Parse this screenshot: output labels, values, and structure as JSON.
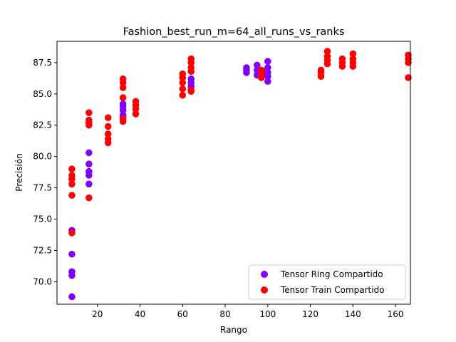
{
  "chart_data": {
    "type": "scatter",
    "title": "Fashion_best_run_m=64_all_runs_vs_ranks",
    "xlabel": "Rango",
    "ylabel": "Precisión",
    "xlim": [
      1,
      167
    ],
    "ylim": [
      68.2,
      89.2
    ],
    "xticks": [
      20,
      40,
      60,
      80,
      100,
      120,
      140,
      160
    ],
    "yticks": [
      70.0,
      72.5,
      75.0,
      77.5,
      80.0,
      82.5,
      85.0,
      87.5
    ],
    "grid": false,
    "legend_position": "bottom-right",
    "series": [
      {
        "name": "Tensor Ring Compartido",
        "color": "#8000ff",
        "points": [
          [
            8,
            74.1
          ],
          [
            8,
            72.2
          ],
          [
            8,
            70.8
          ],
          [
            8,
            70.5
          ],
          [
            8,
            68.8
          ],
          [
            16,
            80.3
          ],
          [
            16,
            79.4
          ],
          [
            16,
            78.8
          ],
          [
            16,
            78.5
          ],
          [
            16,
            77.8
          ],
          [
            32,
            84.2
          ],
          [
            32,
            84.0
          ],
          [
            32,
            83.7
          ],
          [
            32,
            83.3
          ],
          [
            32,
            83.1
          ],
          [
            64,
            86.2
          ],
          [
            64,
            85.9
          ],
          [
            64,
            85.6
          ],
          [
            64,
            85.3
          ],
          [
            90,
            87.1
          ],
          [
            90,
            86.9
          ],
          [
            90,
            86.7
          ],
          [
            95,
            87.3
          ],
          [
            95,
            86.9
          ],
          [
            95,
            86.5
          ],
          [
            98,
            86.8
          ],
          [
            98,
            86.6
          ],
          [
            100,
            87.6
          ],
          [
            100,
            87.1
          ],
          [
            100,
            86.7
          ],
          [
            100,
            86.4
          ],
          [
            100,
            86.0
          ]
        ]
      },
      {
        "name": "Tensor Train Compartido",
        "color": "#ff0000",
        "points": [
          [
            8,
            79.0
          ],
          [
            8,
            78.5
          ],
          [
            8,
            78.2
          ],
          [
            8,
            77.8
          ],
          [
            8,
            76.9
          ],
          [
            8,
            73.9
          ],
          [
            16,
            83.5
          ],
          [
            16,
            82.9
          ],
          [
            16,
            82.7
          ],
          [
            16,
            82.5
          ],
          [
            16,
            76.7
          ],
          [
            25,
            83.1
          ],
          [
            25,
            82.4
          ],
          [
            25,
            81.8
          ],
          [
            25,
            81.4
          ],
          [
            25,
            81.1
          ],
          [
            32,
            86.2
          ],
          [
            32,
            85.9
          ],
          [
            32,
            85.5
          ],
          [
            32,
            84.7
          ],
          [
            32,
            83.0
          ],
          [
            32,
            82.8
          ],
          [
            38,
            84.4
          ],
          [
            38,
            84.1
          ],
          [
            38,
            83.8
          ],
          [
            38,
            83.4
          ],
          [
            60,
            86.6
          ],
          [
            60,
            86.3
          ],
          [
            60,
            85.9
          ],
          [
            60,
            85.4
          ],
          [
            60,
            84.9
          ],
          [
            64,
            87.8
          ],
          [
            64,
            87.5
          ],
          [
            64,
            87.1
          ],
          [
            64,
            86.8
          ],
          [
            64,
            85.3
          ],
          [
            64,
            85.2
          ],
          [
            97,
            86.9
          ],
          [
            97,
            86.6
          ],
          [
            97,
            86.3
          ],
          [
            125,
            86.9
          ],
          [
            125,
            86.7
          ],
          [
            125,
            86.4
          ],
          [
            128,
            88.4
          ],
          [
            128,
            88.0
          ],
          [
            128,
            87.7
          ],
          [
            128,
            87.4
          ],
          [
            135,
            87.8
          ],
          [
            135,
            87.5
          ],
          [
            135,
            87.2
          ],
          [
            140,
            88.2
          ],
          [
            140,
            87.8
          ],
          [
            140,
            87.5
          ],
          [
            140,
            87.2
          ],
          [
            166,
            88.1
          ],
          [
            166,
            87.8
          ],
          [
            166,
            87.5
          ],
          [
            166,
            86.3
          ]
        ]
      }
    ]
  }
}
